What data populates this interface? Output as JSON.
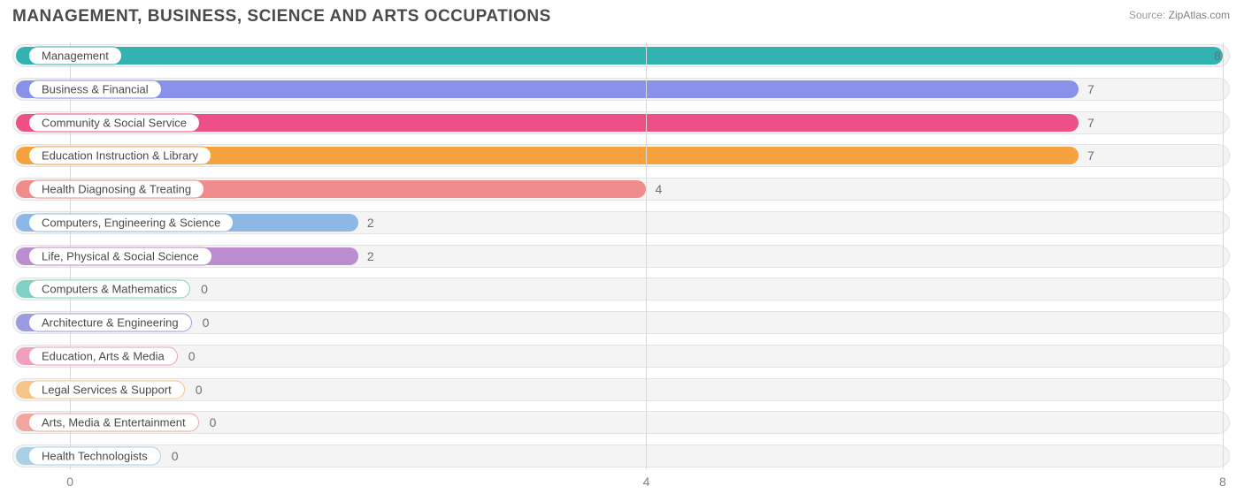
{
  "title": "MANAGEMENT, BUSINESS, SCIENCE AND ARTS OCCUPATIONS",
  "source_label": "Source:",
  "source_value": "ZipAtlas.com",
  "chart": {
    "type": "bar-horizontal",
    "xlim": [
      -0.4,
      8.05
    ],
    "ticks": [
      0,
      4,
      8
    ],
    "track_bg": "#f4f4f4",
    "track_border": "#e3e3e3",
    "grid_color": "#d9d9d9",
    "tick_color": "#808080",
    "bar_radius": 11,
    "pill_bg": "#ffffff",
    "pill_text": "#4a4a4a",
    "value_text": "#707070",
    "rows": [
      {
        "label": "Management",
        "value": 8,
        "color": "#33b2b2",
        "pill_border": "#33b2b2"
      },
      {
        "label": "Business & Financial",
        "value": 7,
        "color": "#8792e8",
        "pill_border": "#8792e8"
      },
      {
        "label": "Community & Social Service",
        "value": 7,
        "color": "#ed5087",
        "pill_border": "#ed5087"
      },
      {
        "label": "Education Instruction & Library",
        "value": 7,
        "color": "#f5a13d",
        "pill_border": "#f5a13d"
      },
      {
        "label": "Health Diagnosing & Treating",
        "value": 4,
        "color": "#f08c8c",
        "pill_border": "#f08c8c"
      },
      {
        "label": "Computers, Engineering & Science",
        "value": 2,
        "color": "#8db8e6",
        "pill_border": "#8db8e6"
      },
      {
        "label": "Life, Physical & Social Science",
        "value": 2,
        "color": "#bb8cce",
        "pill_border": "#bb8cce"
      },
      {
        "label": "Computers & Mathematics",
        "value": 0,
        "color": "#7fd1c5",
        "pill_border": "#7fd1c5"
      },
      {
        "label": "Architecture & Engineering",
        "value": 0,
        "color": "#9c9be0",
        "pill_border": "#9c9be0"
      },
      {
        "label": "Education, Arts & Media",
        "value": 0,
        "color": "#f29ebf",
        "pill_border": "#f29ebf"
      },
      {
        "label": "Legal Services & Support",
        "value": 0,
        "color": "#f7c488",
        "pill_border": "#f7c488"
      },
      {
        "label": "Arts, Media & Entertainment",
        "value": 0,
        "color": "#f2a6a0",
        "pill_border": "#f2a6a0"
      },
      {
        "label": "Health Technologists",
        "value": 0,
        "color": "#a9d0e6",
        "pill_border": "#a9d0e6"
      }
    ]
  }
}
